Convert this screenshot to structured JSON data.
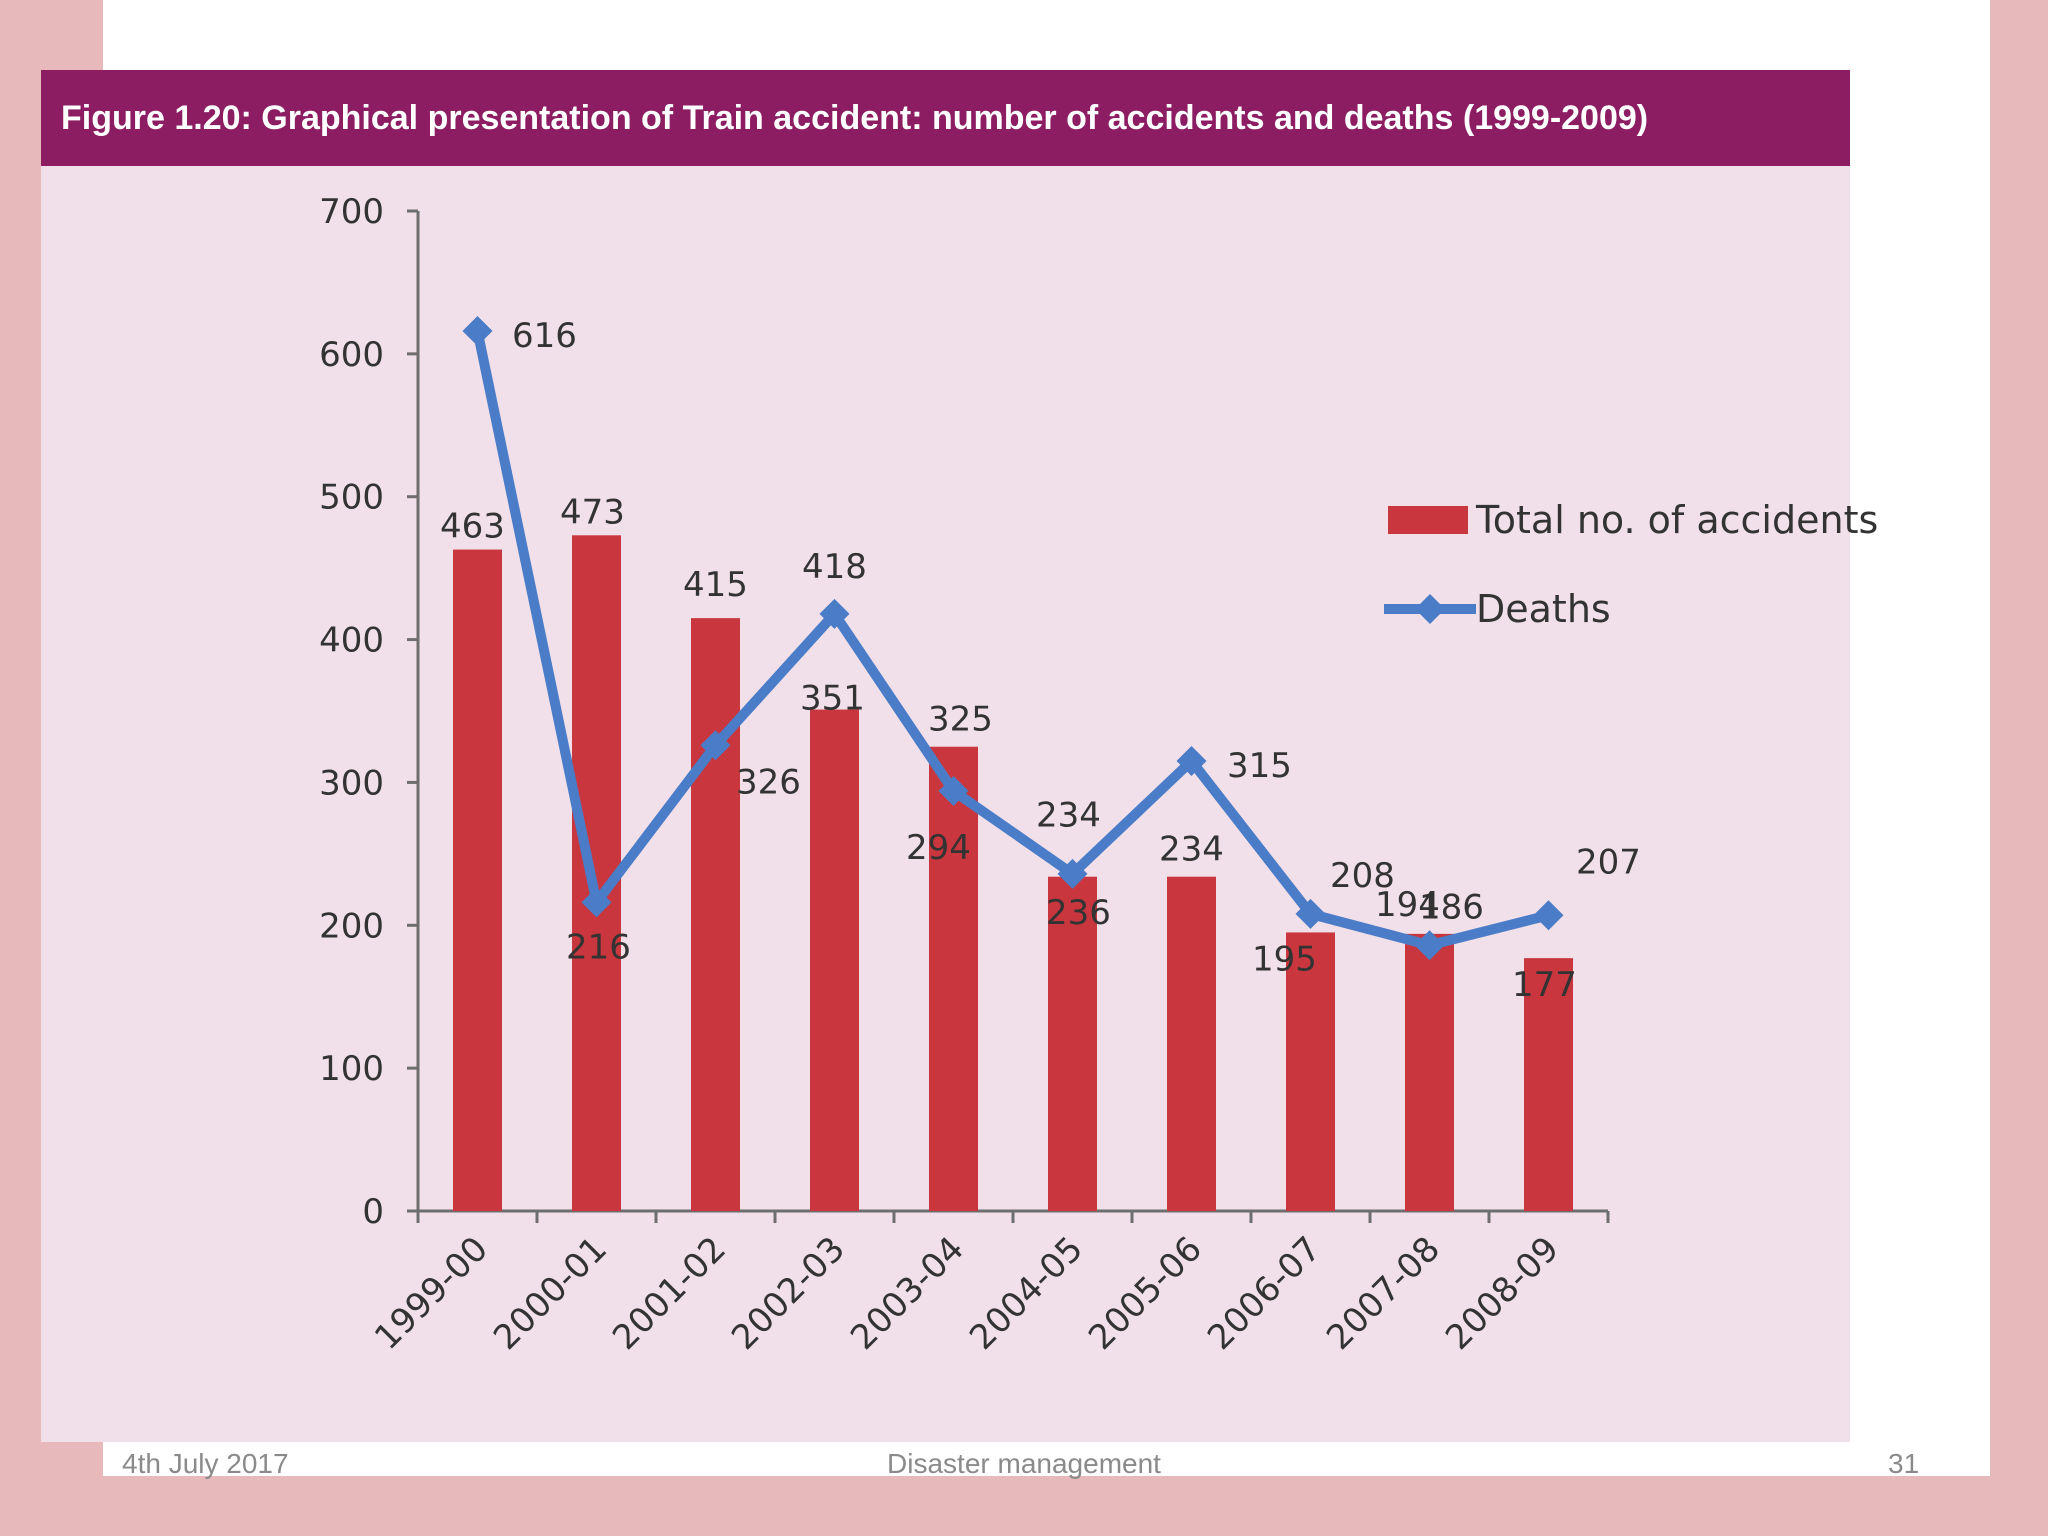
{
  "slide": {
    "footer_date": "4th July 2017",
    "footer_title": "Disaster management",
    "footer_page": "31",
    "background_color": "#e8b9bb"
  },
  "figure": {
    "title": "Figure 1.20: Graphical presentation of Train accident: number of accidents and  deaths (1999-2009)",
    "title_bar_color": "#8c1d63",
    "panel_color": "#f1e0ea"
  },
  "chart_data": {
    "type": "bar",
    "title": "Figure 1.20: Graphical presentation of Train accident: number of accidents and  deaths (1999-2009)",
    "categories": [
      "1999-00",
      "2000-01",
      "2001-02",
      "2002-03",
      "2003-04",
      "2004-05",
      "2005-06",
      "2006-07",
      "2007-08",
      "2008-09"
    ],
    "series": [
      {
        "name": "Total no. of accidents",
        "kind": "bar",
        "color": "#c9363e",
        "values": [
          463,
          473,
          415,
          351,
          325,
          234,
          234,
          195,
          194,
          177
        ],
        "labels": [
          "463",
          "473",
          "415",
          "351",
          "325",
          "234",
          "234",
          "195",
          "194",
          "177"
        ]
      },
      {
        "name": "Deaths",
        "kind": "line",
        "color": "#4a7cc7",
        "values": [
          616,
          216,
          326,
          418,
          294,
          236,
          315,
          208,
          186,
          207
        ],
        "labels": [
          "616",
          "216",
          "326",
          "418",
          "294",
          "236",
          "315",
          "208",
          "186",
          "207"
        ]
      }
    ],
    "ylim": [
      0,
      700
    ],
    "yticks": [
      0,
      100,
      200,
      300,
      400,
      500,
      600,
      700
    ],
    "ytick_labels": [
      "0",
      "100",
      "200",
      "300",
      "400",
      "500",
      "600",
      "700"
    ],
    "xlabel": "",
    "ylabel": "",
    "grid": false,
    "legend_position": "right"
  }
}
